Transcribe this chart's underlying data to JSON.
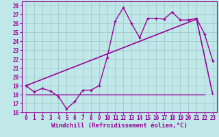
{
  "xlabel": "Windchill (Refroidissement éolien,°C)",
  "ylabel": "",
  "bg_color": "#c0e8e8",
  "grid_color": "#a0cccc",
  "line_color": "#990099",
  "xlim": [
    -0.5,
    23.5
  ],
  "ylim": [
    16,
    28.5
  ],
  "xticks": [
    0,
    1,
    2,
    3,
    4,
    5,
    6,
    7,
    8,
    9,
    10,
    11,
    12,
    13,
    14,
    15,
    16,
    17,
    18,
    19,
    20,
    21,
    22,
    23
  ],
  "yticks": [
    16,
    17,
    18,
    19,
    20,
    21,
    22,
    23,
    24,
    25,
    26,
    27,
    28
  ],
  "windchill_x": [
    0,
    1,
    2,
    3,
    4,
    5,
    6,
    7,
    8,
    9,
    10,
    11,
    12,
    13,
    14,
    15,
    16,
    17,
    18,
    19,
    20,
    21,
    22,
    23
  ],
  "windchill_y": [
    19.0,
    18.3,
    18.7,
    18.4,
    17.8,
    16.4,
    17.2,
    18.5,
    18.5,
    19.0,
    22.2,
    26.3,
    27.8,
    26.0,
    24.4,
    26.6,
    26.6,
    26.5,
    27.3,
    26.4,
    26.4,
    26.6,
    24.8,
    21.8
  ],
  "trend_x": [
    0,
    21,
    23
  ],
  "trend_y": [
    19.0,
    26.5,
    18.0
  ],
  "hline_x": [
    0,
    22
  ],
  "hline_y": [
    18.0,
    18.0
  ],
  "axis_label_fontsize": 6.5,
  "tick_fontsize": 5.5
}
